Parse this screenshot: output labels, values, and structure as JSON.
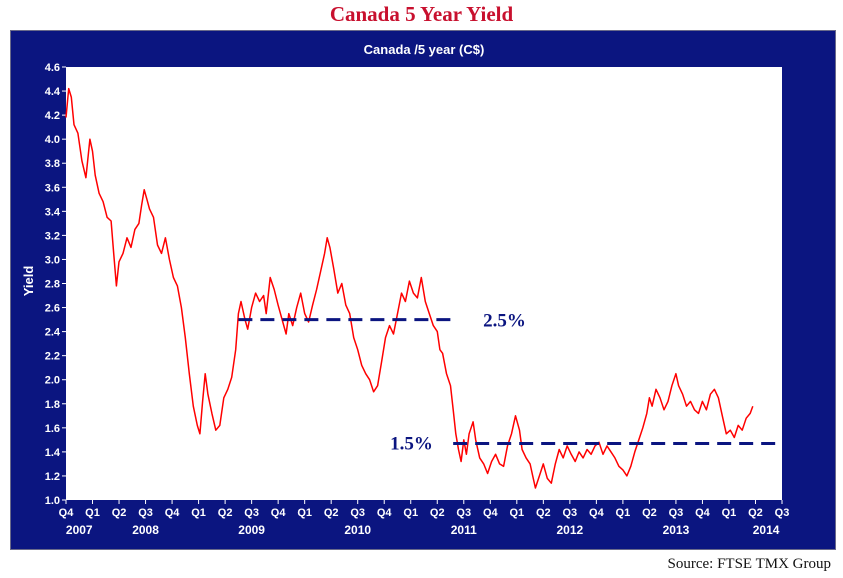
{
  "page": {
    "title": "Canada 5 Year Yield",
    "source": "Source:  FTSE TMX Group"
  },
  "colors": {
    "title": "#c8102e",
    "panel": "#0b1580",
    "line": "#ff0000",
    "levels": "#0b1580"
  },
  "chart_data": {
    "type": "line",
    "title": "Canada /5 year (C$)",
    "ylabel": "Yield",
    "xlabel": "",
    "ylim": [
      1.0,
      4.6
    ],
    "yticks": [
      "1.0",
      "1.2",
      "1.4",
      "1.6",
      "1.8",
      "2.0",
      "2.2",
      "2.4",
      "2.6",
      "2.8",
      "3.0",
      "3.2",
      "3.4",
      "3.6",
      "3.8",
      "4.0",
      "4.2",
      "4.4",
      "4.6"
    ],
    "xlim": [
      0,
      27
    ],
    "quarter_ticks": [
      "Q4",
      "Q1",
      "Q2",
      "Q3",
      "Q4",
      "Q1",
      "Q2",
      "Q3",
      "Q4",
      "Q1",
      "Q2",
      "Q3",
      "Q4",
      "Q1",
      "Q2",
      "Q3",
      "Q4",
      "Q1",
      "Q2",
      "Q3",
      "Q4",
      "Q1",
      "Q2",
      "Q3",
      "Q4",
      "Q1",
      "Q2",
      "Q3"
    ],
    "year_labels": [
      {
        "label": "2007",
        "at": 0.5
      },
      {
        "label": "2008",
        "at": 3
      },
      {
        "label": "2009",
        "at": 7
      },
      {
        "label": "2010",
        "at": 11
      },
      {
        "label": "2011",
        "at": 15
      },
      {
        "label": "2012",
        "at": 19
      },
      {
        "label": "2013",
        "at": 23
      },
      {
        "label": "2014",
        "at": 26.4
      }
    ],
    "grid": false,
    "series": [
      {
        "values": [
          [
            0.0,
            4.18
          ],
          [
            0.1,
            4.42
          ],
          [
            0.2,
            4.35
          ],
          [
            0.3,
            4.12
          ],
          [
            0.45,
            4.05
          ],
          [
            0.6,
            3.82
          ],
          [
            0.75,
            3.68
          ],
          [
            0.9,
            4.0
          ],
          [
            1.0,
            3.9
          ],
          [
            1.1,
            3.7
          ],
          [
            1.25,
            3.55
          ],
          [
            1.4,
            3.48
          ],
          [
            1.55,
            3.35
          ],
          [
            1.7,
            3.32
          ],
          [
            1.8,
            3.05
          ],
          [
            1.9,
            2.78
          ],
          [
            2.0,
            2.98
          ],
          [
            2.15,
            3.05
          ],
          [
            2.3,
            3.18
          ],
          [
            2.45,
            3.1
          ],
          [
            2.6,
            3.25
          ],
          [
            2.75,
            3.3
          ],
          [
            2.85,
            3.45
          ],
          [
            2.95,
            3.58
          ],
          [
            3.05,
            3.5
          ],
          [
            3.15,
            3.42
          ],
          [
            3.3,
            3.35
          ],
          [
            3.45,
            3.12
          ],
          [
            3.6,
            3.05
          ],
          [
            3.75,
            3.18
          ],
          [
            3.9,
            3.0
          ],
          [
            4.05,
            2.85
          ],
          [
            4.2,
            2.78
          ],
          [
            4.35,
            2.6
          ],
          [
            4.5,
            2.35
          ],
          [
            4.65,
            2.05
          ],
          [
            4.8,
            1.78
          ],
          [
            4.95,
            1.62
          ],
          [
            5.05,
            1.55
          ],
          [
            5.15,
            1.82
          ],
          [
            5.25,
            2.05
          ],
          [
            5.35,
            1.88
          ],
          [
            5.5,
            1.72
          ],
          [
            5.65,
            1.58
          ],
          [
            5.8,
            1.62
          ],
          [
            5.95,
            1.85
          ],
          [
            6.1,
            1.92
          ],
          [
            6.25,
            2.02
          ],
          [
            6.4,
            2.25
          ],
          [
            6.5,
            2.55
          ],
          [
            6.6,
            2.65
          ],
          [
            6.75,
            2.5
          ],
          [
            6.85,
            2.42
          ],
          [
            7.0,
            2.6
          ],
          [
            7.15,
            2.72
          ],
          [
            7.3,
            2.65
          ],
          [
            7.45,
            2.7
          ],
          [
            7.55,
            2.55
          ],
          [
            7.7,
            2.85
          ],
          [
            7.85,
            2.75
          ],
          [
            8.0,
            2.62
          ],
          [
            8.15,
            2.5
          ],
          [
            8.3,
            2.38
          ],
          [
            8.4,
            2.55
          ],
          [
            8.55,
            2.45
          ],
          [
            8.7,
            2.6
          ],
          [
            8.85,
            2.72
          ],
          [
            9.0,
            2.55
          ],
          [
            9.15,
            2.48
          ],
          [
            9.3,
            2.62
          ],
          [
            9.45,
            2.75
          ],
          [
            9.6,
            2.9
          ],
          [
            9.75,
            3.05
          ],
          [
            9.85,
            3.18
          ],
          [
            9.95,
            3.1
          ],
          [
            10.1,
            2.92
          ],
          [
            10.25,
            2.72
          ],
          [
            10.4,
            2.8
          ],
          [
            10.55,
            2.62
          ],
          [
            10.7,
            2.55
          ],
          [
            10.85,
            2.35
          ],
          [
            11.0,
            2.25
          ],
          [
            11.15,
            2.12
          ],
          [
            11.3,
            2.05
          ],
          [
            11.45,
            2.0
          ],
          [
            11.6,
            1.9
          ],
          [
            11.75,
            1.95
          ],
          [
            11.9,
            2.15
          ],
          [
            12.05,
            2.35
          ],
          [
            12.2,
            2.45
          ],
          [
            12.35,
            2.38
          ],
          [
            12.5,
            2.55
          ],
          [
            12.65,
            2.72
          ],
          [
            12.8,
            2.65
          ],
          [
            12.95,
            2.82
          ],
          [
            13.1,
            2.72
          ],
          [
            13.25,
            2.68
          ],
          [
            13.4,
            2.85
          ],
          [
            13.55,
            2.65
          ],
          [
            13.7,
            2.55
          ],
          [
            13.85,
            2.45
          ],
          [
            14.0,
            2.4
          ],
          [
            14.1,
            2.25
          ],
          [
            14.2,
            2.22
          ],
          [
            14.35,
            2.05
          ],
          [
            14.5,
            1.95
          ],
          [
            14.6,
            1.75
          ],
          [
            14.7,
            1.55
          ],
          [
            14.8,
            1.42
          ],
          [
            14.9,
            1.32
          ],
          [
            15.0,
            1.5
          ],
          [
            15.1,
            1.38
          ],
          [
            15.2,
            1.55
          ],
          [
            15.35,
            1.65
          ],
          [
            15.45,
            1.5
          ],
          [
            15.6,
            1.35
          ],
          [
            15.75,
            1.3
          ],
          [
            15.9,
            1.22
          ],
          [
            16.05,
            1.32
          ],
          [
            16.2,
            1.38
          ],
          [
            16.35,
            1.3
          ],
          [
            16.5,
            1.28
          ],
          [
            16.65,
            1.45
          ],
          [
            16.8,
            1.55
          ],
          [
            16.95,
            1.7
          ],
          [
            17.1,
            1.58
          ],
          [
            17.2,
            1.42
          ],
          [
            17.35,
            1.35
          ],
          [
            17.5,
            1.3
          ],
          [
            17.6,
            1.2
          ],
          [
            17.7,
            1.1
          ],
          [
            17.85,
            1.2
          ],
          [
            18.0,
            1.3
          ],
          [
            18.15,
            1.18
          ],
          [
            18.3,
            1.14
          ],
          [
            18.45,
            1.3
          ],
          [
            18.6,
            1.42
          ],
          [
            18.75,
            1.35
          ],
          [
            18.9,
            1.45
          ],
          [
            19.05,
            1.38
          ],
          [
            19.2,
            1.32
          ],
          [
            19.35,
            1.4
          ],
          [
            19.5,
            1.35
          ],
          [
            19.65,
            1.42
          ],
          [
            19.8,
            1.38
          ],
          [
            19.95,
            1.45
          ],
          [
            20.1,
            1.48
          ],
          [
            20.25,
            1.38
          ],
          [
            20.4,
            1.45
          ],
          [
            20.55,
            1.4
          ],
          [
            20.7,
            1.35
          ],
          [
            20.85,
            1.28
          ],
          [
            21.0,
            1.25
          ],
          [
            21.15,
            1.2
          ],
          [
            21.3,
            1.28
          ],
          [
            21.45,
            1.4
          ],
          [
            21.6,
            1.5
          ],
          [
            21.75,
            1.6
          ],
          [
            21.9,
            1.72
          ],
          [
            22.0,
            1.85
          ],
          [
            22.1,
            1.78
          ],
          [
            22.25,
            1.92
          ],
          [
            22.4,
            1.85
          ],
          [
            22.55,
            1.75
          ],
          [
            22.7,
            1.82
          ],
          [
            22.85,
            1.95
          ],
          [
            23.0,
            2.05
          ],
          [
            23.1,
            1.95
          ],
          [
            23.25,
            1.88
          ],
          [
            23.4,
            1.78
          ],
          [
            23.55,
            1.82
          ],
          [
            23.7,
            1.75
          ],
          [
            23.85,
            1.72
          ],
          [
            24.0,
            1.82
          ],
          [
            24.15,
            1.75
          ],
          [
            24.3,
            1.88
          ],
          [
            24.45,
            1.92
          ],
          [
            24.6,
            1.85
          ],
          [
            24.75,
            1.7
          ],
          [
            24.9,
            1.55
          ],
          [
            25.05,
            1.58
          ],
          [
            25.2,
            1.52
          ],
          [
            25.35,
            1.62
          ],
          [
            25.5,
            1.58
          ],
          [
            25.65,
            1.68
          ],
          [
            25.8,
            1.72
          ],
          [
            25.9,
            1.78
          ]
        ]
      }
    ],
    "levels": [
      {
        "label": "2.5%",
        "y": 2.5,
        "from": 6.5,
        "to": 14.6
      },
      {
        "label": "1.5%",
        "y": 1.47,
        "from": 14.6,
        "to": 26.9
      }
    ]
  }
}
